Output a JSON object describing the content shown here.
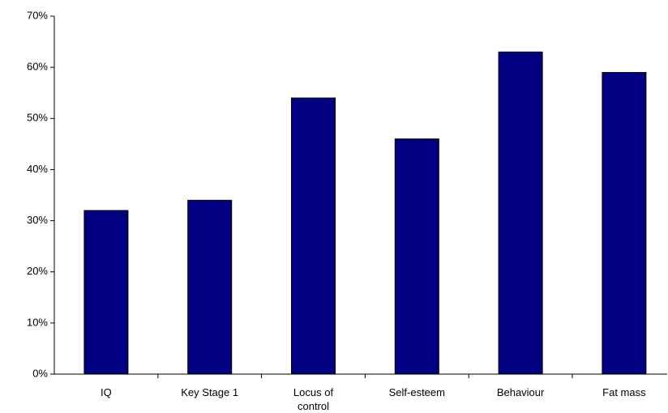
{
  "chart_data": {
    "type": "bar",
    "categories": [
      "IQ",
      "Key Stage 1",
      "Locus of control",
      "Self-esteem",
      "Behaviour",
      "Fat mass"
    ],
    "values": [
      32,
      34,
      54,
      46,
      63,
      59
    ],
    "color": "#000080",
    "ylim": [
      0,
      70
    ],
    "yticks": [
      {
        "value": 0,
        "label": "0%"
      },
      {
        "value": 10,
        "label": "10%"
      },
      {
        "value": 20,
        "label": "20%"
      },
      {
        "value": 30,
        "label": "30%"
      },
      {
        "value": 40,
        "label": "40%"
      },
      {
        "value": 50,
        "label": "50%"
      },
      {
        "value": 60,
        "label": "60%"
      },
      {
        "value": 70,
        "label": "70%"
      }
    ],
    "grid": false
  }
}
